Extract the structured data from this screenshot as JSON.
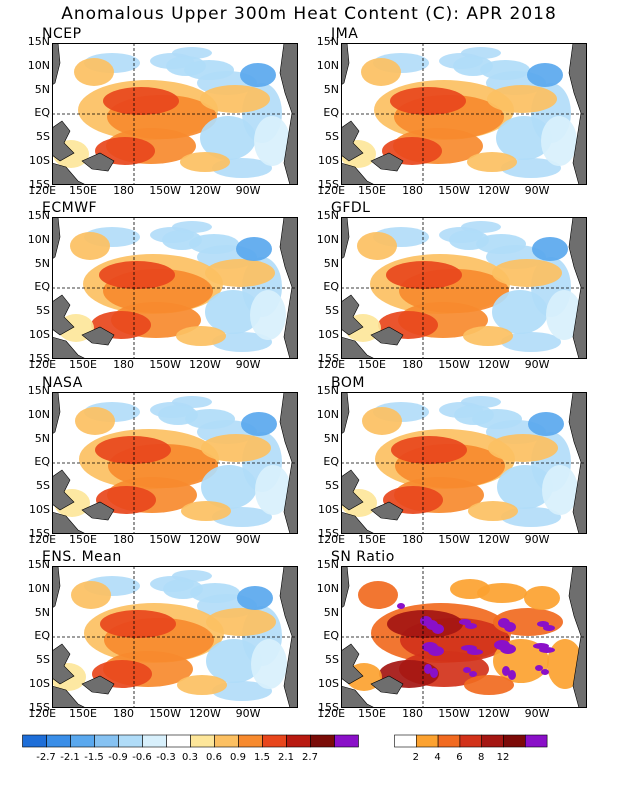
{
  "title": "Anomalous Upper 300m Heat Content (C): APR 2018",
  "lat_labels": [
    "15N",
    "10N",
    "5N",
    "EQ",
    "5S",
    "10S",
    "15S"
  ],
  "lon_labels": [
    "120E",
    "150E",
    "180",
    "150W",
    "120W",
    "90W"
  ],
  "panels": [
    {
      "name": "NCEP"
    },
    {
      "name": "JMA"
    },
    {
      "name": "ECMWF"
    },
    {
      "name": "GFDL"
    },
    {
      "name": "NASA"
    },
    {
      "name": "BOM"
    },
    {
      "name": "ENS. Mean"
    },
    {
      "name": "SN Ratio"
    }
  ],
  "anomaly_colorbar": {
    "labels": [
      "-2.7",
      "-2.1",
      "-1.5",
      "-0.9",
      "-0.6",
      "-0.3",
      "0.3",
      "0.6",
      "0.9",
      "1.5",
      "2.1",
      "2.7"
    ],
    "colors": [
      "#1e6ed8",
      "#3a8ee8",
      "#5aa8ee",
      "#86c2f2",
      "#b0dcf8",
      "#d8f0fc",
      "#ffffff",
      "#fde69a",
      "#fcc062",
      "#f78a2e",
      "#e8461c",
      "#b81a10",
      "#7a0c08",
      "#8a10c8"
    ]
  },
  "ratio_colorbar": {
    "labels": [
      "2",
      "4",
      "6",
      "8",
      "12"
    ],
    "colors": [
      "#ffffff",
      "#fca230",
      "#f16a20",
      "#d2321a",
      "#a41612",
      "#7c0a08",
      "#8a10c8"
    ]
  },
  "colors": {
    "land": "#6e6e6e",
    "zero_line": "#000000"
  }
}
